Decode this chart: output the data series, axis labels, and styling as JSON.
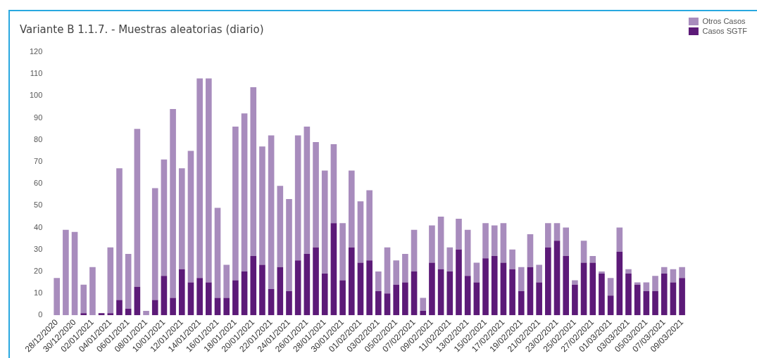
{
  "chart_data": {
    "type": "bar",
    "title": "Variante B 1.1.7. - Muestras aleatorias (diario)",
    "stacked": true,
    "legend": "top right",
    "grid": false,
    "categories": [
      "28/12/2020",
      null,
      "30/12/2020",
      null,
      "02/01/2021",
      null,
      "04/01/2021",
      null,
      "06/01/2021",
      null,
      "08/01/2021",
      null,
      "10/01/2021",
      null,
      "12/01/2021",
      null,
      "14/01/2021",
      null,
      "16/01/2021",
      null,
      "18/01/2021",
      null,
      "20/01/2021",
      null,
      "22/01/2021",
      null,
      "24/01/2021",
      null,
      "26/01/2021",
      null,
      "28/01/2021",
      null,
      "30/01/2021",
      null,
      "01/02/2021",
      null,
      "03/02/2021",
      null,
      "05/02/2021",
      null,
      "07/02/2021",
      null,
      "09/02/2021",
      null,
      "11/02/2021",
      null,
      "13/02/2021",
      null,
      "15/02/2021",
      null,
      "17/02/2021",
      null,
      "19/02/2021",
      null,
      "21/02/2021",
      null,
      "23/02/2021",
      null,
      "25/02/2021",
      null,
      "27/02/2021",
      null,
      "01/03/2021",
      null,
      "03/03/2021",
      null,
      "05/03/2021",
      null,
      "07/03/2021",
      null,
      "09/03/2021"
    ],
    "series": [
      {
        "name": "Casos SGTF",
        "color": "#5c1a78",
        "values": [
          0,
          0,
          0,
          1,
          0,
          1,
          1,
          7,
          3,
          13,
          0,
          7,
          18,
          8,
          21,
          15,
          17,
          15,
          8,
          8,
          16,
          20,
          27,
          23,
          12,
          22,
          11,
          25,
          28,
          31,
          19,
          42,
          16,
          31,
          24,
          25,
          11,
          10,
          14,
          15,
          20,
          2,
          24,
          21,
          20,
          30,
          18,
          15,
          26,
          27,
          24,
          21,
          11,
          22,
          15,
          31,
          34,
          27,
          14,
          24,
          24,
          19,
          9,
          29,
          19,
          14,
          11,
          11,
          19,
          15,
          17
        ]
      },
      {
        "name": "Otros Casos",
        "color": "#a88cbd",
        "values": [
          17,
          39,
          38,
          13,
          22,
          0,
          30,
          60,
          25,
          72,
          2,
          51,
          53,
          86,
          46,
          60,
          91,
          93,
          41,
          15,
          70,
          72,
          77,
          54,
          70,
          37,
          42,
          57,
          58,
          48,
          47,
          36,
          26,
          35,
          28,
          32,
          9,
          21,
          11,
          13,
          19,
          6,
          17,
          24,
          11,
          14,
          21,
          9,
          16,
          14,
          18,
          9,
          11,
          15,
          8,
          11,
          8,
          13,
          2,
          10,
          3,
          1,
          8,
          11,
          2,
          1,
          4,
          7,
          3,
          6,
          5
        ]
      }
    ],
    "ylim": [
      0,
      120
    ],
    "yticks": [
      0,
      10,
      20,
      30,
      40,
      50,
      60,
      70,
      80,
      90,
      100,
      110,
      120
    ]
  }
}
